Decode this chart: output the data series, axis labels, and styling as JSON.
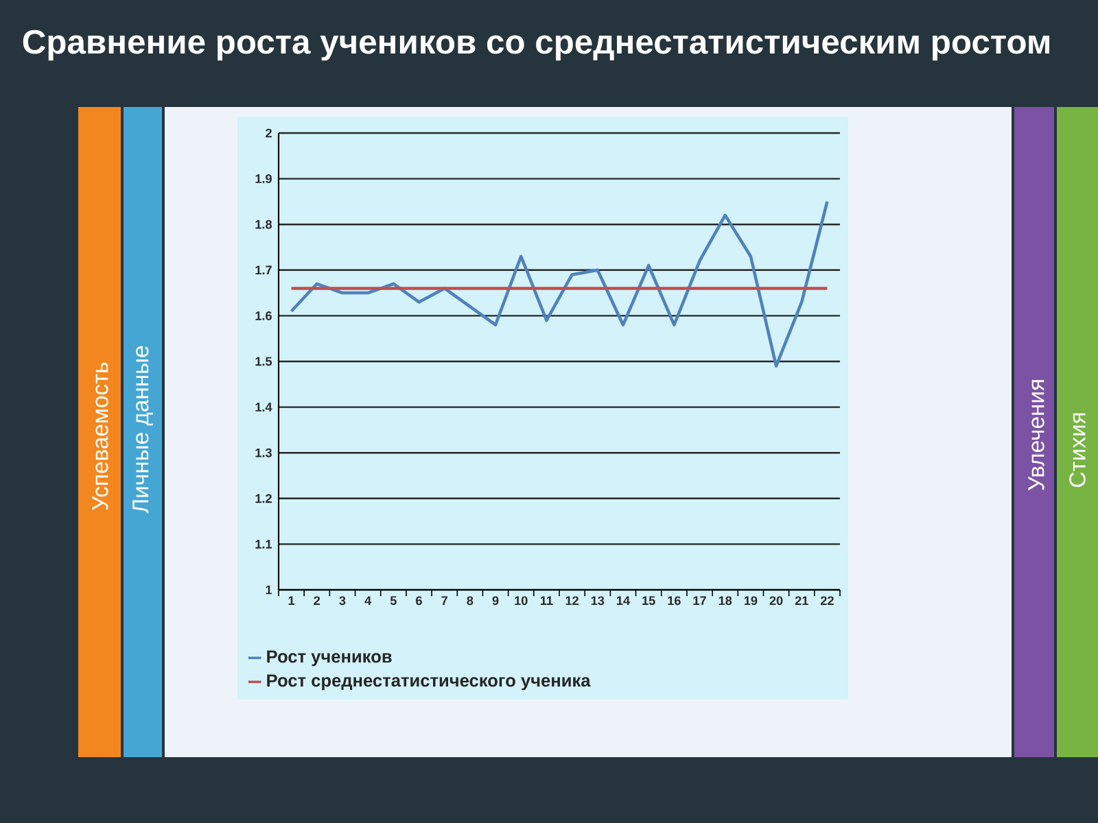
{
  "chart_data": {
    "type": "line",
    "title": "Сравнение роста учеников со среднестатистическим ростом",
    "categories": [
      "1",
      "2",
      "3",
      "4",
      "5",
      "6",
      "7",
      "8",
      "9",
      "10",
      "11",
      "12",
      "13",
      "14",
      "15",
      "16",
      "17",
      "18",
      "19",
      "20",
      "21",
      "22"
    ],
    "series": [
      {
        "name": "Рост учеников",
        "color": "#4f81bd",
        "values": [
          1.61,
          1.67,
          1.65,
          1.65,
          1.67,
          1.63,
          1.66,
          1.62,
          1.58,
          1.73,
          1.59,
          1.69,
          1.7,
          1.58,
          1.71,
          1.58,
          1.72,
          1.82,
          1.73,
          1.49,
          1.63,
          1.85
        ]
      },
      {
        "name": "Рост среднестатистического ученика",
        "color": "#c0504d",
        "values": [
          1.66,
          1.66,
          1.66,
          1.66,
          1.66,
          1.66,
          1.66,
          1.66,
          1.66,
          1.66,
          1.66,
          1.66,
          1.66,
          1.66,
          1.66,
          1.66,
          1.66,
          1.66,
          1.66,
          1.66,
          1.66,
          1.66
        ]
      }
    ],
    "ylim": [
      1,
      2
    ],
    "yticks": [
      1,
      1.1,
      1.2,
      1.3,
      1.4,
      1.5,
      1.6,
      1.7,
      1.8,
      1.9,
      2
    ],
    "grid": "y",
    "legend": "bottom",
    "annotations": [
      "Успеваемость",
      "Личные данные",
      "Увлечения",
      "Стихия"
    ]
  }
}
